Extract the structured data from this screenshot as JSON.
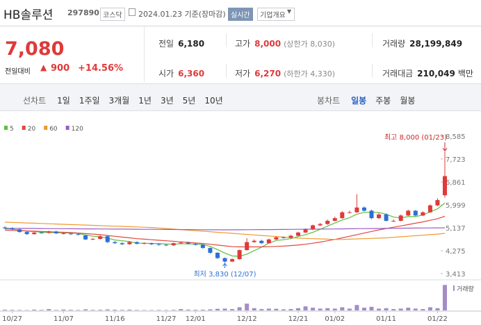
{
  "header": {
    "name": "HB솔루션",
    "code": "297890",
    "market": "코스닥",
    "date": "2024.01.23 기준(장마감)",
    "realtime": "실시간",
    "company_info": "기업개요"
  },
  "price": {
    "current": "7,080",
    "change_label": "전일대비",
    "change": "900",
    "change_pct": "+14.56%"
  },
  "stats": [
    {
      "label": "전일",
      "value": "6,180"
    },
    {
      "label": "고가",
      "value": "8,000",
      "extra": "(상한가 8,030)"
    },
    {
      "label": "거래량",
      "value": "28,199,849"
    },
    {
      "label": "시가",
      "value": "6,360"
    },
    {
      "label": "저가",
      "value": "6,270",
      "extra": "(하한가 4,330)"
    },
    {
      "label": "거래대금",
      "value": "210,049",
      "extra": "백만"
    }
  ],
  "tabs": {
    "line_label": "선차트",
    "line_periods": [
      "1일",
      "1주일",
      "3개월",
      "1년",
      "3년",
      "5년",
      "10년"
    ],
    "candle_label": "봉차트",
    "candle_periods": [
      "일봉",
      "주봉",
      "월봉"
    ]
  },
  "chart_data": {
    "type": "candlestick",
    "up_color": "#e0393a",
    "down_color": "#2c6fd6",
    "categories": [
      null,
      "10/27",
      null,
      null,
      null,
      null,
      null,
      null,
      "11/07",
      null,
      null,
      null,
      null,
      null,
      null,
      "11/16",
      null,
      null,
      null,
      null,
      null,
      null,
      "11/27",
      null,
      null,
      null,
      "12/01",
      null,
      null,
      null,
      null,
      null,
      null,
      "12/12",
      null,
      null,
      null,
      null,
      null,
      null,
      "12/21",
      null,
      null,
      null,
      null,
      "01/02",
      null,
      null,
      null,
      null,
      null,
      null,
      "01/11",
      null,
      null,
      null,
      null,
      null,
      null,
      "01/22",
      null
    ],
    "open": [
      5150,
      5120,
      5080,
      4980,
      4900,
      4960,
      4950,
      5000,
      4930,
      4920,
      4900,
      4850,
      4700,
      4720,
      4820,
      4600,
      4560,
      4520,
      4600,
      4540,
      4560,
      4520,
      4500,
      4480,
      4560,
      4580,
      4540,
      4500,
      4380,
      4200,
      4000,
      3870,
      3960,
      4300,
      4600,
      4650,
      4560,
      4700,
      4780,
      4760,
      4840,
      4960,
      5080,
      5230,
      5280,
      5400,
      5500,
      5720,
      5720,
      5900,
      5780,
      5500,
      5640,
      5400,
      5400,
      5600,
      5780,
      5600,
      5720,
      5980,
      6360
    ],
    "high": [
      5200,
      5160,
      5100,
      5010,
      4990,
      5000,
      5030,
      5030,
      4960,
      4950,
      4930,
      4880,
      4760,
      4860,
      4850,
      4640,
      4600,
      4640,
      4630,
      4590,
      4580,
      4550,
      4530,
      4580,
      4620,
      4610,
      4570,
      4520,
      4400,
      4220,
      4020,
      3990,
      4320,
      4750,
      4700,
      4690,
      4730,
      4820,
      4810,
      4870,
      4990,
      5120,
      5260,
      5320,
      5450,
      5560,
      5770,
      5780,
      6400,
      5940,
      5820,
      5690,
      5680,
      5450,
      5640,
      5820,
      5810,
      5760,
      6020,
      6250,
      8000
    ],
    "low": [
      5090,
      5050,
      4950,
      4870,
      4880,
      4920,
      4920,
      4900,
      4890,
      4870,
      4850,
      4680,
      4680,
      4700,
      4570,
      4530,
      4490,
      4500,
      4510,
      4520,
      4490,
      4470,
      4450,
      4460,
      4540,
      4510,
      4470,
      4350,
      4160,
      3970,
      3830,
      3850,
      3940,
      4280,
      4580,
      4530,
      4540,
      4680,
      4730,
      4740,
      4820,
      4940,
      5050,
      5200,
      5250,
      5380,
      5470,
      5680,
      5700,
      5750,
      5460,
      5470,
      5380,
      5360,
      5380,
      5580,
      5570,
      5580,
      5700,
      5950,
      6270
    ],
    "close": [
      5120,
      5080,
      4980,
      4900,
      4960,
      4950,
      5000,
      4930,
      4920,
      4900,
      4880,
      4700,
      4720,
      4820,
      4600,
      4560,
      4520,
      4600,
      4540,
      4560,
      4520,
      4500,
      4480,
      4560,
      4580,
      4540,
      4500,
      4380,
      4200,
      4000,
      3870,
      3960,
      4300,
      4600,
      4650,
      4560,
      4700,
      4780,
      4760,
      4840,
      4960,
      5080,
      5230,
      5280,
      5400,
      5500,
      5720,
      5720,
      5900,
      5780,
      5500,
      5640,
      5400,
      5400,
      5600,
      5780,
      5600,
      5720,
      5980,
      6180,
      7080
    ],
    "volume": [
      800000,
      600000,
      500000,
      400000,
      900000,
      600000,
      1500000,
      500000,
      1000000,
      700000,
      500000,
      1200000,
      600000,
      700000,
      1100000,
      800000,
      600000,
      900000,
      500000,
      400000,
      400000,
      500000,
      400000,
      600000,
      1500000,
      900000,
      700000,
      800000,
      1200000,
      1800000,
      2000000,
      1500000,
      3500000,
      7500000,
      2500000,
      1500000,
      2000000,
      1800000,
      1200000,
      1500000,
      2500000,
      4500000,
      3000000,
      2000000,
      2500000,
      2000000,
      3500000,
      2000000,
      6000000,
      3000000,
      4000000,
      2000000,
      2500000,
      1500000,
      2000000,
      3000000,
      2000000,
      1500000,
      3500000,
      2500000,
      28199849
    ],
    "series": [
      {
        "name": "5",
        "color": "#5cbf3c",
        "values": [
          5100,
          5090,
          5050,
          5010,
          5000,
          4970,
          4960,
          4950,
          4950,
          4940,
          4930,
          4870,
          4820,
          4800,
          4750,
          4680,
          4650,
          4620,
          4560,
          4560,
          4550,
          4550,
          4530,
          4520,
          4540,
          4530,
          4530,
          4510,
          4440,
          4320,
          4190,
          4080,
          4070,
          4150,
          4280,
          4410,
          4560,
          4660,
          4690,
          4730,
          4810,
          4880,
          4970,
          5080,
          5200,
          5320,
          5430,
          5520,
          5650,
          5720,
          5720,
          5710,
          5650,
          5540,
          5510,
          5560,
          5560,
          5620,
          5740,
          5850,
          6070
        ]
      },
      {
        "name": "20",
        "color": "#e2473e",
        "values": [
          5050,
          5040,
          5030,
          5020,
          5010,
          5000,
          4990,
          4980,
          4970,
          4960,
          4940,
          4920,
          4900,
          4880,
          4850,
          4820,
          4790,
          4760,
          4730,
          4710,
          4690,
          4670,
          4650,
          4630,
          4610,
          4590,
          4570,
          4550,
          4520,
          4490,
          4460,
          4430,
          4420,
          4420,
          4420,
          4420,
          4430,
          4440,
          4450,
          4470,
          4490,
          4520,
          4560,
          4600,
          4650,
          4700,
          4760,
          4820,
          4880,
          4940,
          5000,
          5060,
          5110,
          5160,
          5210,
          5260,
          5310,
          5360,
          5420,
          5480,
          5570
        ]
      },
      {
        "name": "60",
        "color": "#f0992a",
        "values": [
          5350,
          5340,
          5330,
          5320,
          5310,
          5300,
          5290,
          5280,
          5270,
          5260,
          5250,
          5240,
          5230,
          5220,
          5210,
          5200,
          5190,
          5180,
          5170,
          5160,
          5150,
          5130,
          5110,
          5090,
          5070,
          5050,
          5030,
          5010,
          4990,
          4970,
          4950,
          4930,
          4910,
          4890,
          4870,
          4850,
          4830,
          4810,
          4790,
          4770,
          4750,
          4740,
          4730,
          4720,
          4710,
          4700,
          4700,
          4710,
          4720,
          4730,
          4740,
          4750,
          4760,
          4780,
          4800,
          4820,
          4840,
          4860,
          4880,
          4900,
          4930
        ]
      },
      {
        "name": "120",
        "color": "#9b5bc6",
        "values": [
          5120,
          5118,
          5116,
          5114,
          5112,
          5110,
          5108,
          5106,
          5104,
          5102,
          5100,
          5098,
          5096,
          5094,
          5092,
          5090,
          5088,
          5086,
          5084,
          5082,
          5080,
          5078,
          5076,
          5074,
          5072,
          5070,
          5068,
          5066,
          5064,
          5062,
          5060,
          5062,
          5064,
          5066,
          5068,
          5070,
          5072,
          5074,
          5076,
          5078,
          5080,
          5083,
          5086,
          5089,
          5092,
          5095,
          5098,
          5101,
          5104,
          5107,
          5110,
          5113,
          5116,
          5119,
          5122,
          5125,
          5128,
          5131,
          5134,
          5137,
          5140
        ]
      }
    ],
    "ylim": [
      3260,
      8870
    ],
    "yticks": [
      {
        "value": 3413,
        "label": "3,413"
      },
      {
        "value": 4275,
        "label": "4,275"
      },
      {
        "value": 5137,
        "label": "5,137"
      },
      {
        "value": 5999,
        "label": "5,999"
      },
      {
        "value": 6861,
        "label": "6,861"
      },
      {
        "value": 7723,
        "label": "7,723"
      },
      {
        "value": 8585,
        "label": "8,585"
      }
    ],
    "vlim": [
      0,
      30000000
    ],
    "volume_label": "거래량",
    "high_label": "최고 8,000 (01/23)",
    "low_label": "최저 3,830 (12/07)"
  }
}
